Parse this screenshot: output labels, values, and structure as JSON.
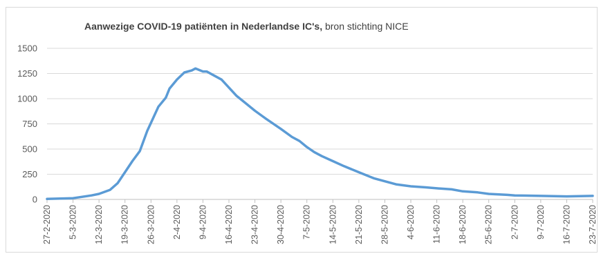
{
  "chart_data": {
    "type": "line",
    "title_bold": "Aanwezige COVID-19 patiënten in Nederlandse IC's,",
    "title_rest": " bron stichting NICE",
    "xlabel": "",
    "ylabel": "",
    "ylim": [
      0,
      1500
    ],
    "yticks": [
      0,
      250,
      500,
      750,
      1000,
      1250,
      1500
    ],
    "grid": true,
    "legend": "none",
    "line_color": "#5b9bd5",
    "x_tick_labels": [
      "27-2-2020",
      "5-3-2020",
      "12-3-2020",
      "19-3-2020",
      "26-3-2020",
      "2-4-2020",
      "9-4-2020",
      "16-4-2020",
      "23-4-2020",
      "30-4-2020",
      "7-5-2020",
      "14-5-2020",
      "21-5-2020",
      "28-5-2020",
      "4-6-2020",
      "11-6-2020",
      "18-6-2020",
      "25-6-2020",
      "2-7-2020",
      "9-7-2020",
      "16-7-2020",
      "23-7-2020"
    ],
    "series": [
      {
        "x": [
          "27-2-2020",
          "5-3-2020",
          "10-3-2020",
          "12-3-2020",
          "15-3-2020",
          "17-3-2020",
          "19-3-2020",
          "21-3-2020",
          "23-3-2020",
          "25-3-2020",
          "26-3-2020",
          "28-3-2020",
          "30-3-2020",
          "31-3-2020",
          "2-4-2020",
          "4-4-2020",
          "6-4-2020",
          "7-4-2020",
          "9-4-2020",
          "10-4-2020",
          "12-4-2020",
          "14-4-2020",
          "16-4-2020",
          "18-4-2020",
          "20-4-2020",
          "23-4-2020",
          "26-4-2020",
          "30-4-2020",
          "3-5-2020",
          "5-5-2020",
          "7-5-2020",
          "9-5-2020",
          "11-5-2020",
          "14-5-2020",
          "17-5-2020",
          "21-5-2020",
          "25-5-2020",
          "28-5-2020",
          "31-5-2020",
          "4-6-2020",
          "8-6-2020",
          "11-6-2020",
          "15-6-2020",
          "18-6-2020",
          "22-6-2020",
          "25-6-2020",
          "30-6-2020",
          "2-7-2020",
          "9-7-2020",
          "16-7-2020",
          "23-7-2020"
        ],
        "values": [
          5,
          12,
          40,
          55,
          95,
          160,
          270,
          380,
          480,
          680,
          760,
          920,
          1010,
          1100,
          1190,
          1260,
          1280,
          1300,
          1270,
          1270,
          1230,
          1190,
          1110,
          1030,
          970,
          880,
          800,
          700,
          620,
          580,
          520,
          470,
          430,
          380,
          330,
          270,
          210,
          180,
          150,
          130,
          120,
          110,
          100,
          80,
          70,
          55,
          45,
          40,
          35,
          30,
          35
        ]
      }
    ]
  }
}
